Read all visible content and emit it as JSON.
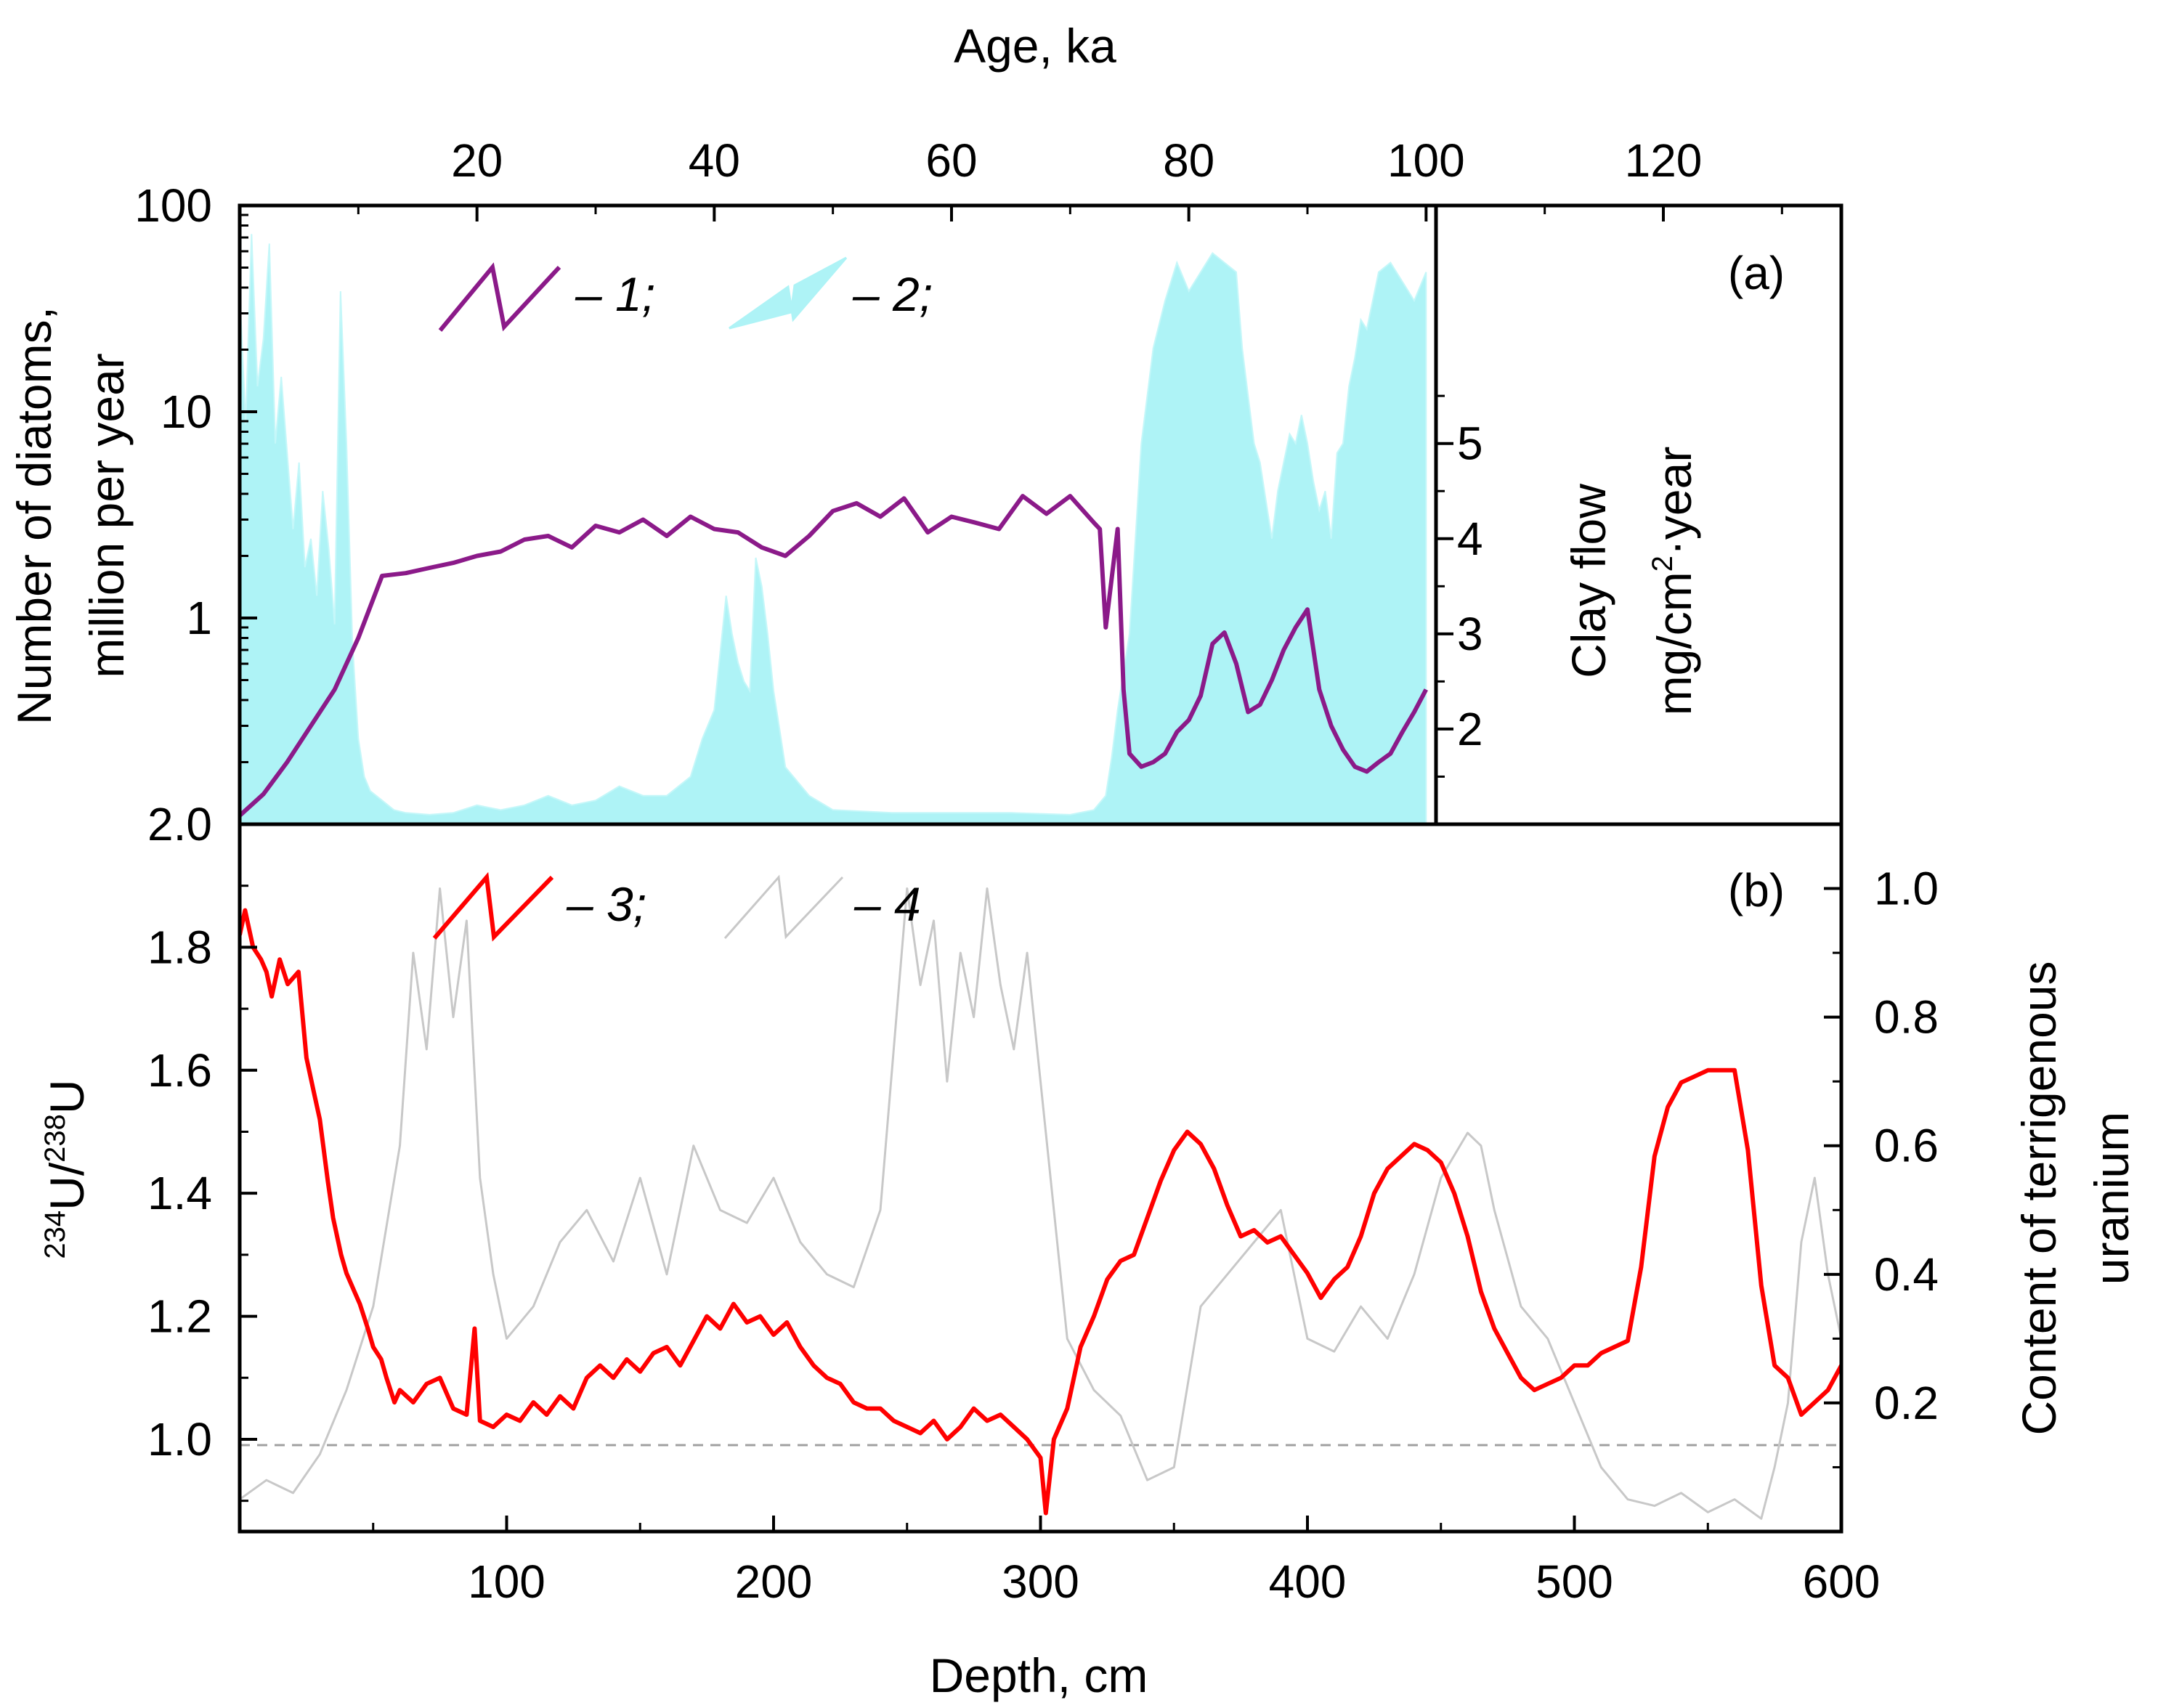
{
  "chart_data": [
    {
      "panel": "(a)",
      "type": "line",
      "x_axis_top": {
        "title": "Age, ka",
        "ticks": [
          "20",
          "40",
          "60",
          "80",
          "100",
          "120"
        ],
        "range": [
          0,
          135
        ]
      },
      "y_axis_left": {
        "title_line1": "Number of diatoms,",
        "title_line2": "million per year",
        "scale": "log",
        "ticks": [
          "100",
          "10",
          "1"
        ],
        "range": [
          0.1,
          100
        ]
      },
      "y_axis_inner_right": {
        "title_line1": "Clay flow",
        "title_line2_a": "mg/cm",
        "title_line2_sup": "2",
        "title_line2_b": "·year",
        "ticks": [
          "5",
          "4",
          "3",
          "2"
        ],
        "range": [
          1.0,
          7.5
        ]
      },
      "legend": [
        {
          "symbol": "line",
          "label": "– 1;"
        },
        {
          "symbol": "area",
          "label": "– 2;"
        }
      ],
      "series": [
        {
          "name": "1",
          "axis": "left",
          "color": "#8b1a89",
          "x": [
            0,
            2,
            4,
            6,
            8,
            10,
            12,
            14,
            16,
            18,
            20,
            22,
            24,
            26,
            28,
            30,
            32,
            34,
            36,
            38,
            40,
            42,
            44,
            46,
            48,
            50,
            52,
            54,
            56,
            58,
            60,
            62,
            64,
            66,
            68,
            70,
            72,
            72.5,
            73,
            74,
            74.5,
            75,
            76,
            77,
            78,
            79,
            80,
            81,
            82,
            83,
            84,
            85,
            86,
            87,
            88,
            89,
            90,
            91,
            92,
            93,
            94,
            95,
            96,
            97,
            98,
            99,
            100
          ],
          "y": [
            0.11,
            0.14,
            0.2,
            0.3,
            0.45,
            0.8,
            1.6,
            1.65,
            1.75,
            1.85,
            2.0,
            2.1,
            2.4,
            2.5,
            2.2,
            2.8,
            2.6,
            3.0,
            2.5,
            3.1,
            2.7,
            2.6,
            2.2,
            2.0,
            2.5,
            3.3,
            3.6,
            3.1,
            3.8,
            2.6,
            3.1,
            2.9,
            2.7,
            3.9,
            3.2,
            3.9,
            2.9,
            2.7,
            0.9,
            2.7,
            0.45,
            0.22,
            0.19,
            0.2,
            0.22,
            0.28,
            0.32,
            0.42,
            0.75,
            0.85,
            0.6,
            0.35,
            0.38,
            0.5,
            0.7,
            0.9,
            1.1,
            0.45,
            0.3,
            0.23,
            0.19,
            0.18,
            0.2,
            0.22,
            0.28,
            0.35,
            0.45
          ]
        },
        {
          "name": "2",
          "axis": "inner_right",
          "type": "area",
          "color": "#aef3f6",
          "x": [
            0,
            0.5,
            1,
            1.5,
            2,
            2.5,
            3,
            3.5,
            4,
            4.5,
            5,
            5.5,
            6,
            6.5,
            7,
            7.5,
            8,
            8.5,
            9,
            9.5,
            10,
            10.5,
            11,
            11.5,
            12,
            13,
            14,
            16,
            18,
            20,
            22,
            24,
            26,
            28,
            30,
            32,
            34,
            36,
            38,
            39,
            40,
            40.5,
            41,
            41.5,
            42,
            42.5,
            43,
            43.5,
            44,
            44.5,
            45,
            45.5,
            46,
            48,
            50,
            55,
            60,
            65,
            70,
            72,
            73,
            73.5,
            74,
            74.5,
            75,
            75.5,
            76,
            77,
            78,
            79,
            80,
            81,
            82,
            83,
            84,
            84.5,
            85,
            85.5,
            86,
            86.5,
            87,
            87.5,
            88,
            88.5,
            89,
            89.5,
            90,
            90.5,
            91,
            91.5,
            92,
            92.5,
            93,
            93.5,
            94,
            94.5,
            95,
            96,
            97,
            98,
            99,
            100
          ],
          "y": [
            6.6,
            5.2,
            7.2,
            5.6,
            6.1,
            7.1,
            5.0,
            5.7,
            4.9,
            4.1,
            4.8,
            3.7,
            4.0,
            3.4,
            4.5,
            3.9,
            3.1,
            6.6,
            5.0,
            2.9,
            1.9,
            1.5,
            1.35,
            1.3,
            1.25,
            1.15,
            1.12,
            1.1,
            1.12,
            1.2,
            1.15,
            1.2,
            1.3,
            1.2,
            1.25,
            1.4,
            1.3,
            1.3,
            1.5,
            1.9,
            2.2,
            2.8,
            3.4,
            3.0,
            2.7,
            2.5,
            2.4,
            3.8,
            3.5,
            3.0,
            2.4,
            2.0,
            1.6,
            1.3,
            1.15,
            1.12,
            1.12,
            1.12,
            1.1,
            1.15,
            1.3,
            1.7,
            2.2,
            2.6,
            3.0,
            4.0,
            5.0,
            6.0,
            6.5,
            6.9,
            6.6,
            6.8,
            7.0,
            6.9,
            6.8,
            6.0,
            5.5,
            5.0,
            4.8,
            4.4,
            4.0,
            4.5,
            4.8,
            5.1,
            5.0,
            5.3,
            5.0,
            4.6,
            4.3,
            4.5,
            4.0,
            4.9,
            5.0,
            5.6,
            5.9,
            6.3,
            6.2,
            6.8,
            6.9,
            6.7,
            6.5,
            6.8
          ]
        }
      ]
    },
    {
      "panel": "(b)",
      "type": "line",
      "x_axis_bottom": {
        "title": "Depth, cm",
        "ticks": [
          "100",
          "200",
          "300",
          "400",
          "500",
          "600"
        ],
        "range": [
          0,
          600
        ]
      },
      "y_axis_left": {
        "title_sup1": "234",
        "title_main1": "U/",
        "title_sup2": "238",
        "title_main2": "U",
        "ticks": [
          "2.0",
          "1.8",
          "1.6",
          "1.4",
          "1.2",
          "1.0"
        ],
        "range": [
          0.85,
          2.0
        ]
      },
      "y_axis_right": {
        "title_line1": "Content of terrigenous",
        "title_line2": "uranium",
        "ticks": [
          "1.0",
          "0.8",
          "0.6",
          "0.4",
          "0.2"
        ],
        "range": [
          0.0,
          1.1
        ]
      },
      "reference_line": {
        "value": 1.0,
        "style": "dashed"
      },
      "legend": [
        {
          "symbol": "line",
          "label": "– 3;"
        },
        {
          "symbol": "line",
          "label": "– 4"
        }
      ],
      "series": [
        {
          "name": "3",
          "axis": "left",
          "color": "#ff0000",
          "x": [
            0,
            2,
            5,
            8,
            10,
            12,
            15,
            18,
            22,
            25,
            28,
            30,
            33,
            35,
            38,
            40,
            43,
            45,
            48,
            50,
            53,
            55,
            58,
            60,
            65,
            70,
            75,
            80,
            85,
            88,
            90,
            95,
            100,
            105,
            110,
            115,
            120,
            125,
            130,
            135,
            140,
            145,
            150,
            155,
            160,
            165,
            170,
            175,
            180,
            185,
            190,
            195,
            200,
            205,
            210,
            215,
            220,
            225,
            230,
            235,
            240,
            245,
            250,
            255,
            260,
            265,
            270,
            275,
            280,
            285,
            290,
            295,
            300,
            302,
            305,
            310,
            315,
            320,
            325,
            330,
            335,
            340,
            345,
            350,
            355,
            360,
            365,
            370,
            375,
            380,
            385,
            390,
            395,
            400,
            405,
            410,
            415,
            420,
            425,
            430,
            435,
            440,
            445,
            450,
            455,
            460,
            465,
            470,
            475,
            480,
            485,
            490,
            495,
            500,
            505,
            510,
            515,
            520,
            525,
            530,
            535,
            540,
            545,
            550,
            555,
            560,
            565,
            570,
            575,
            580,
            585,
            590,
            595,
            600
          ],
          "y": [
            1.82,
            1.86,
            1.8,
            1.78,
            1.76,
            1.72,
            1.78,
            1.74,
            1.76,
            1.62,
            1.56,
            1.52,
            1.42,
            1.36,
            1.3,
            1.27,
            1.24,
            1.22,
            1.18,
            1.15,
            1.13,
            1.1,
            1.06,
            1.08,
            1.06,
            1.09,
            1.1,
            1.05,
            1.04,
            1.18,
            1.03,
            1.02,
            1.04,
            1.03,
            1.06,
            1.04,
            1.07,
            1.05,
            1.1,
            1.12,
            1.1,
            1.13,
            1.11,
            1.14,
            1.15,
            1.12,
            1.16,
            1.2,
            1.18,
            1.22,
            1.19,
            1.2,
            1.17,
            1.19,
            1.15,
            1.12,
            1.1,
            1.09,
            1.06,
            1.05,
            1.05,
            1.03,
            1.02,
            1.01,
            1.03,
            1.0,
            1.02,
            1.05,
            1.03,
            1.04,
            1.02,
            1.0,
            0.97,
            0.88,
            1.0,
            1.05,
            1.15,
            1.2,
            1.26,
            1.29,
            1.3,
            1.36,
            1.42,
            1.47,
            1.5,
            1.48,
            1.44,
            1.38,
            1.33,
            1.34,
            1.32,
            1.33,
            1.3,
            1.27,
            1.23,
            1.26,
            1.28,
            1.33,
            1.4,
            1.44,
            1.46,
            1.48,
            1.47,
            1.45,
            1.4,
            1.33,
            1.24,
            1.18,
            1.14,
            1.1,
            1.08,
            1.09,
            1.1,
            1.12,
            1.12,
            1.14,
            1.15,
            1.16,
            1.28,
            1.46,
            1.54,
            1.58,
            1.59,
            1.6,
            1.6,
            1.6,
            1.47,
            1.25,
            1.12,
            1.1,
            1.04,
            1.06,
            1.08,
            1.12
          ]
        },
        {
          "name": "4",
          "axis": "right",
          "color": "#c8c8c8",
          "x": [
            0,
            10,
            20,
            30,
            40,
            50,
            60,
            65,
            70,
            75,
            80,
            85,
            90,
            95,
            100,
            110,
            120,
            130,
            140,
            150,
            160,
            170,
            180,
            190,
            200,
            210,
            220,
            230,
            240,
            245,
            250,
            255,
            260,
            265,
            270,
            275,
            280,
            285,
            290,
            295,
            300,
            305,
            310,
            320,
            330,
            340,
            350,
            360,
            370,
            380,
            390,
            400,
            410,
            420,
            430,
            440,
            450,
            460,
            465,
            470,
            480,
            490,
            500,
            510,
            520,
            530,
            540,
            550,
            560,
            570,
            575,
            580,
            585,
            590,
            595,
            600
          ],
          "y": [
            0.05,
            0.08,
            0.06,
            0.12,
            0.22,
            0.35,
            0.6,
            0.9,
            0.75,
            1.0,
            0.8,
            0.95,
            0.55,
            0.4,
            0.3,
            0.35,
            0.45,
            0.5,
            0.42,
            0.55,
            0.4,
            0.6,
            0.5,
            0.48,
            0.55,
            0.45,
            0.4,
            0.38,
            0.5,
            0.75,
            1.0,
            0.85,
            0.95,
            0.7,
            0.9,
            0.8,
            1.0,
            0.85,
            0.75,
            0.9,
            0.7,
            0.5,
            0.3,
            0.22,
            0.18,
            0.08,
            0.1,
            0.35,
            0.4,
            0.45,
            0.5,
            0.3,
            0.28,
            0.35,
            0.3,
            0.4,
            0.55,
            0.62,
            0.6,
            0.5,
            0.35,
            0.3,
            0.2,
            0.1,
            0.05,
            0.04,
            0.06,
            0.03,
            0.05,
            0.02,
            0.1,
            0.2,
            0.45,
            0.55,
            0.4,
            0.3
          ]
        }
      ]
    }
  ]
}
